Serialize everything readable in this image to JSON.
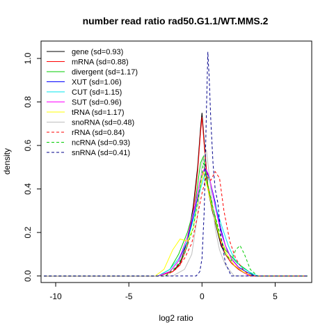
{
  "chart_data": {
    "type": "line",
    "title": "number read ratio rad50.G1.1/WT.MMS.2",
    "xlabel": "log2 ratio",
    "ylabel": "density",
    "xlim": [
      -11,
      7.5
    ],
    "ylim": [
      -0.03,
      1.08
    ],
    "xticks": [
      -10,
      -5,
      0,
      5
    ],
    "yticks": [
      0.0,
      0.2,
      0.4,
      0.6,
      0.8,
      1.0
    ],
    "grid": false,
    "legend_position": "top-left",
    "series": [
      {
        "name": "gene (sd=0.93)",
        "color": "#000000",
        "dash": "solid",
        "x": [
          -10.8,
          -3,
          -2,
          -1.5,
          -1,
          -0.6,
          -0.3,
          -0.1,
          0,
          0.2,
          0.4,
          0.7,
          1,
          1.3,
          1.6,
          2,
          2.5,
          3,
          3.5,
          7.2
        ],
        "y": [
          0,
          0,
          0.02,
          0.06,
          0.16,
          0.32,
          0.5,
          0.68,
          0.75,
          0.58,
          0.4,
          0.3,
          0.22,
          0.14,
          0.1,
          0.06,
          0.03,
          0.01,
          0,
          0
        ]
      },
      {
        "name": "mRNA (sd=0.88)",
        "color": "#ff0000",
        "dash": "solid",
        "x": [
          -10.8,
          -3,
          -2,
          -1.5,
          -1,
          -0.6,
          -0.3,
          -0.1,
          0,
          0.2,
          0.4,
          0.7,
          1,
          1.3,
          1.6,
          2,
          2.5,
          3,
          3.5,
          7.2
        ],
        "y": [
          0,
          0,
          0.02,
          0.05,
          0.14,
          0.3,
          0.48,
          0.66,
          0.73,
          0.56,
          0.42,
          0.32,
          0.24,
          0.15,
          0.1,
          0.06,
          0.03,
          0.01,
          0,
          0
        ]
      },
      {
        "name": "divergent (sd=1.17)",
        "color": "#00cd00",
        "dash": "solid",
        "x": [
          -10.8,
          -3,
          -2.2,
          -1.6,
          -1,
          -0.5,
          -0.1,
          0.1,
          0.4,
          0.8,
          1.2,
          1.6,
          2,
          2.4,
          3,
          3.6,
          7.2
        ],
        "y": [
          0,
          0,
          0.03,
          0.1,
          0.2,
          0.32,
          0.52,
          0.55,
          0.4,
          0.3,
          0.18,
          0.12,
          0.09,
          0.06,
          0.03,
          0,
          0
        ]
      },
      {
        "name": "XUT (sd=1.06)",
        "color": "#0000ff",
        "dash": "solid",
        "x": [
          -10.8,
          -3,
          -2.2,
          -1.6,
          -1,
          -0.5,
          -0.1,
          0.2,
          0.5,
          0.9,
          1.2,
          1.6,
          2,
          2.5,
          3,
          3.6,
          7.2
        ],
        "y": [
          0,
          0,
          0.02,
          0.07,
          0.16,
          0.3,
          0.42,
          0.5,
          0.45,
          0.34,
          0.24,
          0.14,
          0.08,
          0.04,
          0.02,
          0,
          0
        ]
      },
      {
        "name": "CUT (sd=1.15)",
        "color": "#00e5ee",
        "dash": "solid",
        "x": [
          -10.8,
          -3,
          -2.2,
          -1.6,
          -1,
          -0.5,
          -0.1,
          0.2,
          0.5,
          0.9,
          1.3,
          1.8,
          2.2,
          2.7,
          3.2,
          3.8,
          7.2
        ],
        "y": [
          0,
          0,
          0.03,
          0.08,
          0.16,
          0.28,
          0.4,
          0.47,
          0.44,
          0.33,
          0.24,
          0.14,
          0.08,
          0.04,
          0.02,
          0,
          0
        ]
      },
      {
        "name": "SUT (sd=0.96)",
        "color": "#ff00ff",
        "dash": "solid",
        "x": [
          -10.8,
          -3,
          -2.2,
          -1.6,
          -1,
          -0.5,
          -0.1,
          0.2,
          0.5,
          0.9,
          1.3,
          1.7,
          2.1,
          2.6,
          3.2,
          7.2
        ],
        "y": [
          0,
          0,
          0.02,
          0.07,
          0.18,
          0.32,
          0.45,
          0.5,
          0.46,
          0.32,
          0.2,
          0.12,
          0.07,
          0.03,
          0,
          0
        ]
      },
      {
        "name": "tRNA (sd=1.17)",
        "color": "#ffff00",
        "dash": "solid",
        "x": [
          -10.8,
          -3.2,
          -2.6,
          -2,
          -1.5,
          -1,
          -0.6,
          -0.2,
          0.1,
          0.4,
          0.8,
          1.2,
          1.7,
          2.2,
          2.8,
          3.4,
          7.2
        ],
        "y": [
          0,
          0,
          0.03,
          0.12,
          0.17,
          0.16,
          0.22,
          0.38,
          0.48,
          0.4,
          0.28,
          0.18,
          0.1,
          0.05,
          0.02,
          0,
          0
        ]
      },
      {
        "name": "snoRNA (sd=0.48)",
        "color": "#bebebe",
        "dash": "solid",
        "x": [
          -10.8,
          -2,
          -1.2,
          -0.7,
          -0.3,
          0,
          0.3,
          0.6,
          0.9,
          1.2,
          1.6,
          2.2,
          7.2
        ],
        "y": [
          0,
          0,
          0.03,
          0.1,
          0.28,
          0.52,
          0.58,
          0.4,
          0.22,
          0.12,
          0.05,
          0,
          0
        ]
      },
      {
        "name": "rRNA (sd=0.84)",
        "color": "#ff0000",
        "dash": "dashed",
        "x": [
          -10.8,
          -2.5,
          -1.8,
          -1.2,
          -0.7,
          -0.3,
          0,
          0.3,
          0.6,
          0.9,
          1.2,
          1.5,
          1.9,
          2.3,
          2.8,
          3.3,
          7.2
        ],
        "y": [
          0,
          0,
          0.03,
          0.08,
          0.15,
          0.28,
          0.38,
          0.46,
          0.44,
          0.48,
          0.45,
          0.3,
          0.16,
          0.08,
          0.03,
          0,
          0
        ]
      },
      {
        "name": "ncRNA (sd=0.93)",
        "color": "#00cd00",
        "dash": "dashed",
        "x": [
          -10.8,
          -2.5,
          -1.8,
          -1.2,
          -0.6,
          -0.2,
          0.1,
          0.4,
          0.8,
          1.2,
          1.6,
          2,
          2.3,
          2.6,
          2.9,
          3.3,
          3.8,
          7.2
        ],
        "y": [
          0,
          0,
          0.04,
          0.1,
          0.22,
          0.38,
          0.52,
          0.42,
          0.3,
          0.2,
          0.1,
          0.07,
          0.12,
          0.14,
          0.1,
          0.03,
          0,
          0
        ]
      },
      {
        "name": "snRNA (sd=0.41)",
        "color": "#00008b",
        "dash": "dashed",
        "x": [
          -10.8,
          -0.4,
          -0.15,
          0,
          0.15,
          0.3,
          0.4,
          0.5,
          0.6,
          0.75,
          0.9,
          1.1,
          1.3,
          1.6,
          2,
          7.2
        ],
        "y": [
          0,
          0,
          0.02,
          0.08,
          0.3,
          0.75,
          1.03,
          0.9,
          0.72,
          0.52,
          0.4,
          0.33,
          0.18,
          0.06,
          0,
          0
        ]
      }
    ]
  }
}
